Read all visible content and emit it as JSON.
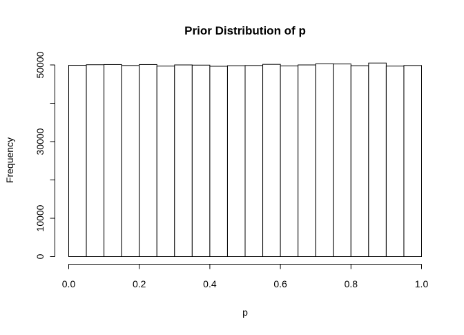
{
  "chart_data": {
    "type": "bar",
    "title": "Prior Distribution of p",
    "xlabel": "p",
    "ylabel": "Frequency",
    "bin_width": 0.05,
    "bins": [
      {
        "start": 0.0,
        "end": 0.05,
        "value": 49900
      },
      {
        "start": 0.05,
        "end": 0.1,
        "value": 50050
      },
      {
        "start": 0.1,
        "end": 0.15,
        "value": 50100
      },
      {
        "start": 0.15,
        "end": 0.2,
        "value": 49850
      },
      {
        "start": 0.2,
        "end": 0.25,
        "value": 50100
      },
      {
        "start": 0.25,
        "end": 0.3,
        "value": 49700
      },
      {
        "start": 0.3,
        "end": 0.35,
        "value": 50000
      },
      {
        "start": 0.35,
        "end": 0.4,
        "value": 49950
      },
      {
        "start": 0.4,
        "end": 0.45,
        "value": 49650
      },
      {
        "start": 0.45,
        "end": 0.5,
        "value": 49800
      },
      {
        "start": 0.5,
        "end": 0.55,
        "value": 49850
      },
      {
        "start": 0.55,
        "end": 0.6,
        "value": 50150
      },
      {
        "start": 0.6,
        "end": 0.65,
        "value": 49750
      },
      {
        "start": 0.65,
        "end": 0.7,
        "value": 50000
      },
      {
        "start": 0.7,
        "end": 0.75,
        "value": 50300
      },
      {
        "start": 0.75,
        "end": 0.8,
        "value": 50250
      },
      {
        "start": 0.8,
        "end": 0.85,
        "value": 49800
      },
      {
        "start": 0.85,
        "end": 0.9,
        "value": 50500
      },
      {
        "start": 0.9,
        "end": 0.95,
        "value": 49700
      },
      {
        "start": 0.95,
        "end": 1.0,
        "value": 49850
      }
    ],
    "xlim": [
      0,
      1
    ],
    "ylim": [
      0,
      50500
    ],
    "x_ticks": [
      {
        "value": 0.0,
        "label": "0.0"
      },
      {
        "value": 0.2,
        "label": "0.2"
      },
      {
        "value": 0.4,
        "label": "0.4"
      },
      {
        "value": 0.6,
        "label": "0.6"
      },
      {
        "value": 0.8,
        "label": "0.8"
      },
      {
        "value": 1.0,
        "label": "1.0"
      }
    ],
    "y_ticks": [
      {
        "value": 0,
        "label": "0"
      },
      {
        "value": 10000,
        "label": "10000"
      },
      {
        "value": 30000,
        "label": "30000"
      },
      {
        "value": 50000,
        "label": "50000"
      }
    ],
    "y_minor_ticks": [
      20000,
      40000
    ],
    "grid": false,
    "legend": "none",
    "bar_fill": "#ffffff",
    "bar_stroke": "#000000"
  }
}
